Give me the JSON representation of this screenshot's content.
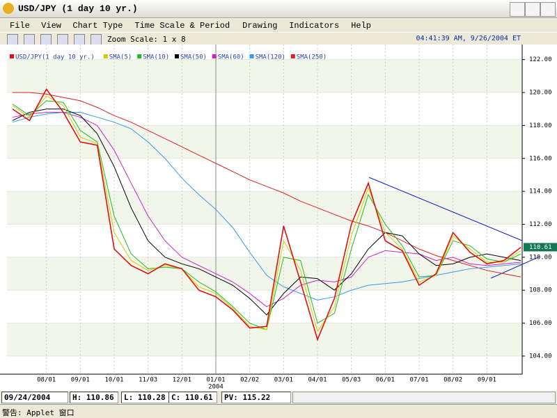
{
  "window": {
    "title": "USD/JPY (1 day  10 yr.)",
    "menu": [
      "File",
      "View",
      "Chart Type",
      "Time Scale & Period",
      "Drawing",
      "Indicators",
      "Help"
    ],
    "zoom": "Zoom Scale: 1 x 8",
    "timestamp": "04:41:39 AM, 9/26/2004 ET",
    "warning": "警告: Applet 窗口"
  },
  "status": {
    "date": "09/24/2004",
    "items": [
      "H: 110.86",
      "L: 110.28",
      "C: 110.61",
      "PV: 115.22"
    ]
  },
  "chart_data": {
    "type": "line",
    "legend": "top-left",
    "grid": true,
    "categories": [
      null,
      null,
      "08/01",
      null,
      "09/01",
      null,
      "10/01",
      null,
      "11/03",
      null,
      "12/01",
      null,
      "01/01",
      null,
      "02/02",
      null,
      "03/01",
      null,
      "04/01",
      null,
      "05/03",
      null,
      "06/01",
      null,
      "07/01",
      null,
      "08/02",
      null,
      "09/01",
      null,
      null
    ],
    "annotation": "2004",
    "ylim": [
      102.9,
      123
    ],
    "yticks": [
      {
        "value": 104,
        "label": "104.00"
      },
      {
        "value": 106,
        "label": "106.00"
      },
      {
        "value": 108,
        "label": "108.00"
      },
      {
        "value": 110,
        "label": "110.00"
      },
      {
        "value": 112,
        "label": "112.00"
      },
      {
        "value": 114,
        "label": "114.00"
      },
      {
        "value": 116,
        "label": "116.00"
      },
      {
        "value": 118,
        "label": "118.00"
      },
      {
        "value": 120,
        "label": "120.00"
      },
      {
        "value": 122,
        "label": "122.00"
      }
    ],
    "last_price": 110.61,
    "series": [
      {
        "name": "USD/JPY(1 day  10 yr.)",
        "color": "#dd1111",
        "values": [
          119,
          118.3,
          120.2,
          118.8,
          117,
          116.8,
          110.5,
          109.5,
          109,
          109.6,
          109.3,
          108,
          107.6,
          106.8,
          105.7,
          105.8,
          111.9,
          108.5,
          105,
          107.5,
          112,
          114.5,
          111,
          110.4,
          108.3,
          109,
          111.5,
          110.3,
          109.6,
          109.8,
          110.6
        ]
      },
      {
        "name": "SMA(5)",
        "color": "#cccc00",
        "values": [
          119.2,
          118.5,
          119.8,
          119.2,
          117.3,
          116.9,
          111.5,
          109.8,
          109.2,
          109.5,
          109.3,
          108.2,
          107.8,
          106.9,
          105.8,
          105.6,
          111,
          109.2,
          105.5,
          107,
          111.3,
          114.2,
          111.5,
          110.5,
          108.5,
          108.9,
          111.3,
          110.5,
          109.7,
          109.7,
          110.4
        ]
      },
      {
        "name": "SMA(10)",
        "color": "#22bb22",
        "values": [
          119.3,
          118.6,
          119.5,
          119.4,
          117.7,
          117,
          112.5,
          110.2,
          109.3,
          109.4,
          109.3,
          108.5,
          107.9,
          107,
          106,
          105.6,
          110,
          109.8,
          106,
          106.6,
          110.5,
          113.8,
          112,
          110.7,
          108.8,
          108.9,
          111,
          110.7,
          109.9,
          109.7,
          110.2
        ]
      },
      {
        "name": "SMA(50)",
        "color": "#000000",
        "values": [
          118.3,
          118.8,
          119,
          119,
          118.6,
          117.5,
          115.5,
          113,
          111,
          110,
          109.6,
          109.3,
          108.8,
          108.3,
          107.5,
          106.5,
          107.8,
          108.8,
          108.7,
          108,
          109,
          110.5,
          111.5,
          111.3,
          110.2,
          109.5,
          109.6,
          110,
          110.2,
          110,
          109.8
        ]
      },
      {
        "name": "SMA(60)",
        "color": "#cc22cc",
        "values": [
          118.5,
          118.7,
          118.8,
          118.8,
          118.5,
          118,
          116.5,
          114.5,
          112.5,
          111,
          110,
          109.5,
          109,
          108.5,
          107.8,
          107,
          107.5,
          108.3,
          108.6,
          108.5,
          108.8,
          110,
          110.4,
          110.3,
          110.2,
          109.8,
          110,
          109.6,
          109.5,
          109.6,
          109.7
        ]
      },
      {
        "name": "SMA(120)",
        "color": "#3399ee",
        "values": [
          118.2,
          118.5,
          118.7,
          118.8,
          118.8,
          118.5,
          118.2,
          117.8,
          117,
          116,
          114.8,
          113.8,
          112.9,
          111.8,
          110.3,
          108.9,
          108.2,
          107.8,
          107.4,
          107.6,
          108,
          108.3,
          108.4,
          108.5,
          108.7,
          108.9,
          109.1,
          109.3,
          109.4,
          109.5,
          109.6
        ]
      },
      {
        "name": "SMA(250)",
        "color": "#dd2222",
        "values": [
          120,
          120,
          119.9,
          119.7,
          119.5,
          119.1,
          118.6,
          118.2,
          117.7,
          117.2,
          116.7,
          116.2,
          115.7,
          115.2,
          114.7,
          114.3,
          113.9,
          113.4,
          113,
          112.6,
          112.2,
          111.9,
          111.5,
          111,
          110.5,
          110.1,
          109.8,
          109.5,
          109.2,
          109,
          108.8
        ]
      }
    ]
  }
}
